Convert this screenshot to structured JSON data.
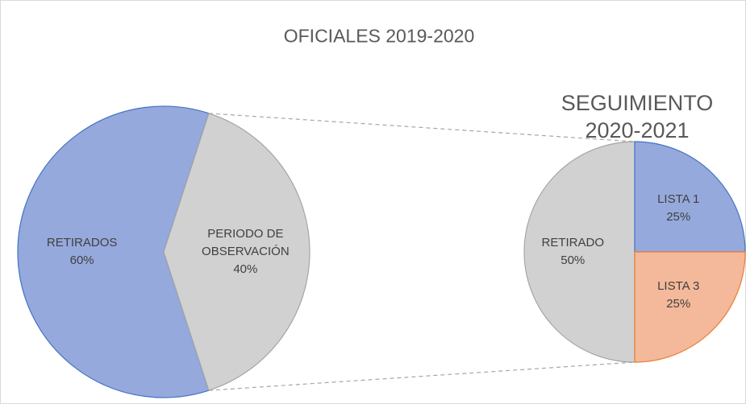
{
  "chart_data": [
    {
      "type": "pie",
      "title": "OFICIALES 2019-2020",
      "categories": [
        "RETIRADOS",
        "PERIODO DE OBSERVACIÓN"
      ],
      "values": [
        60,
        40
      ],
      "value_labels": [
        "60%",
        "40%"
      ],
      "colors": [
        "#95a9dc",
        "#d1d1d1"
      ],
      "stroke_colors": [
        "#4472c4",
        "#a5a5a5"
      ]
    },
    {
      "type": "pie",
      "title": "SEGUIMIENTO 2020-2021",
      "categories": [
        "RETIRADO",
        "LISTA 1",
        "LISTA 3"
      ],
      "values": [
        50,
        25,
        25
      ],
      "value_labels": [
        "50%",
        "25%",
        "25%"
      ],
      "colors": [
        "#d1d1d1",
        "#95a9dc",
        "#f4b89a"
      ],
      "stroke_colors": [
        "#a5a5a5",
        "#4472c4",
        "#ed7d31"
      ]
    }
  ]
}
